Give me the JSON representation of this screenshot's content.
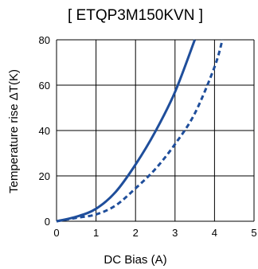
{
  "chart_data": {
    "type": "line",
    "title": "[ ETQP3M150KVN ]",
    "xlabel": "DC Bias (A)",
    "ylabel": "Temperature rise ΔT(K)",
    "xlim": [
      0,
      5
    ],
    "ylim": [
      0,
      80
    ],
    "xticks": [
      "0",
      "1",
      "2",
      "3",
      "4",
      "5"
    ],
    "yticks": [
      "0",
      "20",
      "40",
      "60",
      "80"
    ],
    "grid": true,
    "legend": "none",
    "series": [
      {
        "style": "solid",
        "color": "#1f4e9b",
        "points": [
          [
            0,
            0
          ],
          [
            0.5,
            2
          ],
          [
            1,
            5.5
          ],
          [
            1.5,
            13
          ],
          [
            2,
            25
          ],
          [
            2.5,
            39.5
          ],
          [
            3,
            57
          ],
          [
            3.5,
            80
          ]
        ]
      },
      {
        "style": "dashed",
        "color": "#1f4e9b",
        "points": [
          [
            0,
            0
          ],
          [
            0.5,
            1.5
          ],
          [
            1,
            3
          ],
          [
            1.5,
            7
          ],
          [
            2,
            14.5
          ],
          [
            2.5,
            23
          ],
          [
            3,
            34
          ],
          [
            3.5,
            47.5
          ],
          [
            4,
            68
          ],
          [
            4.2,
            80
          ]
        ]
      }
    ]
  }
}
